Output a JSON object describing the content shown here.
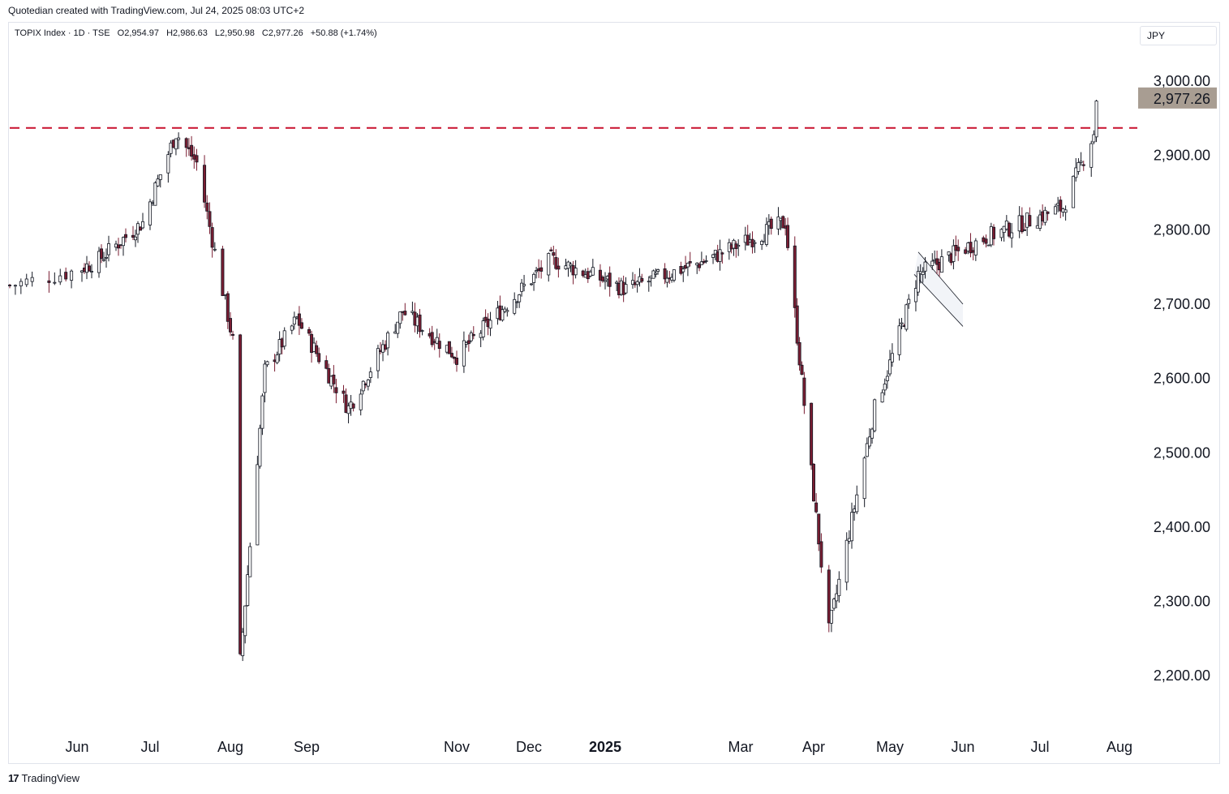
{
  "header": {
    "caption": "Quotedian created with TradingView.com, Jul 24, 2025 08:03 UTC+2"
  },
  "legend": {
    "symbol": "TOPIX Index · 1D · TSE",
    "open": "O2,954.97",
    "high": "H2,986.63",
    "low": "L2,950.98",
    "close": "C2,977.26",
    "change": "+50.88 (+1.74%)"
  },
  "currency": "JPY",
  "footer": {
    "brand_logo": "17",
    "brand": "TradingView"
  },
  "colors": {
    "up": "#ffffff",
    "down": "#7a1d32",
    "outline": "#131722",
    "resistance": "#c8102e",
    "price_tag": "#a89d92"
  },
  "chart_data": {
    "type": "candlestick",
    "y_axis_ticks": [
      "3,000.00",
      "2,900.00",
      "2,800.00",
      "2,700.00",
      "2,600.00",
      "2,500.00",
      "2,400.00",
      "2,300.00",
      "2,200.00"
    ],
    "y_tick_values": [
      3000,
      2900,
      2800,
      2700,
      2600,
      2500,
      2400,
      2300,
      2200
    ],
    "x_axis_labels": [
      {
        "text": "Jun",
        "bold": false
      },
      {
        "text": "Jul",
        "bold": false
      },
      {
        "text": "Aug",
        "bold": false
      },
      {
        "text": "Sep",
        "bold": false
      },
      {
        "text": "Nov",
        "bold": false
      },
      {
        "text": "Dec",
        "bold": false
      },
      {
        "text": "2025",
        "bold": true
      },
      {
        "text": "Mar",
        "bold": false
      },
      {
        "text": "Apr",
        "bold": false
      },
      {
        "text": "May",
        "bold": false
      },
      {
        "text": "Jun",
        "bold": false
      },
      {
        "text": "Jul",
        "bold": false
      },
      {
        "text": "Aug",
        "bold": false
      }
    ],
    "last_price": 2977.26,
    "last_price_label": "2,977.26",
    "resistance_level": 2937,
    "ylim": [
      2170,
      3010
    ],
    "series_key_points": [
      {
        "date": "2024-05-20",
        "close": 2725
      },
      {
        "date": "2024-06-10",
        "close": 2760
      },
      {
        "date": "2024-06-28",
        "close": 2810
      },
      {
        "date": "2024-07-11",
        "close": 2930
      },
      {
        "date": "2024-07-19",
        "close": 2890
      },
      {
        "date": "2024-08-02",
        "close": 2650
      },
      {
        "date": "2024-08-05",
        "close": 2220
      },
      {
        "date": "2024-08-15",
        "close": 2610
      },
      {
        "date": "2024-08-28",
        "close": 2680
      },
      {
        "date": "2024-09-18",
        "close": 2560
      },
      {
        "date": "2024-10-10",
        "close": 2690
      },
      {
        "date": "2024-11-01",
        "close": 2630
      },
      {
        "date": "2024-12-10",
        "close": 2760
      },
      {
        "date": "2025-01-10",
        "close": 2720
      },
      {
        "date": "2025-02-15",
        "close": 2760
      },
      {
        "date": "2025-03-20",
        "close": 2810
      },
      {
        "date": "2025-04-07",
        "close": 2260
      },
      {
        "date": "2025-04-25",
        "close": 2560
      },
      {
        "date": "2025-05-13",
        "close": 2740
      },
      {
        "date": "2025-06-10",
        "close": 2790
      },
      {
        "date": "2025-07-10",
        "close": 2830
      },
      {
        "date": "2025-07-22",
        "close": 2930
      },
      {
        "date": "2025-07-23",
        "close": 2977.26
      }
    ]
  }
}
